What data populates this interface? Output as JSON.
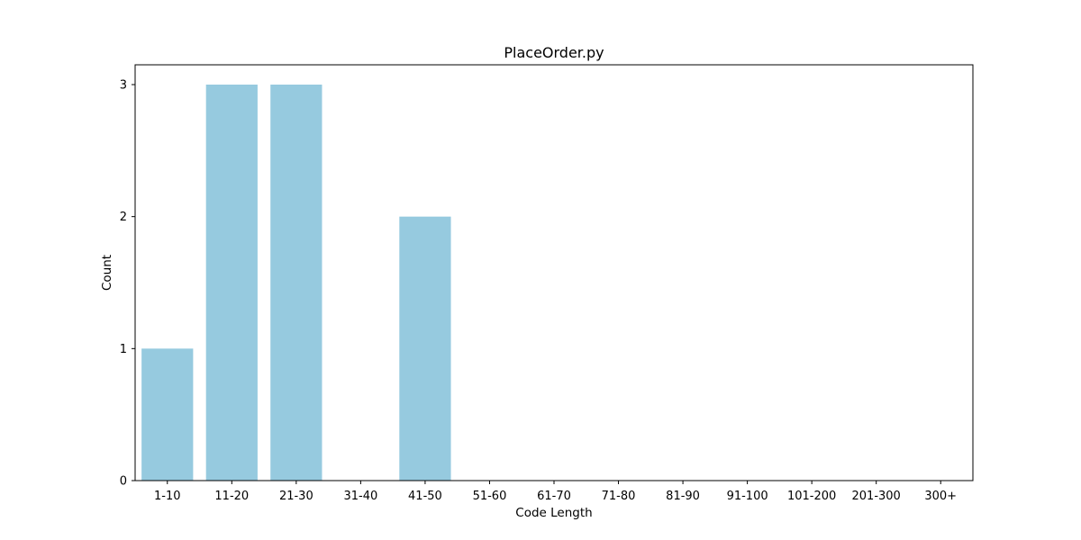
{
  "chart_data": {
    "type": "bar",
    "title": "PlaceOrder.py",
    "xlabel": "Code Length",
    "ylabel": "Count",
    "categories": [
      "1-10",
      "11-20",
      "21-30",
      "31-40",
      "41-50",
      "51-60",
      "61-70",
      "71-80",
      "81-90",
      "91-100",
      "101-200",
      "201-300",
      "300+"
    ],
    "values": [
      1,
      3,
      3,
      0,
      2,
      0,
      0,
      0,
      0,
      0,
      0,
      0,
      0
    ],
    "yticks": [
      0,
      1,
      2,
      3
    ],
    "ylim": [
      0,
      3.15
    ],
    "grid": false,
    "legend": "none",
    "bar_color": "#96cadf",
    "axis_color": "#000000"
  }
}
